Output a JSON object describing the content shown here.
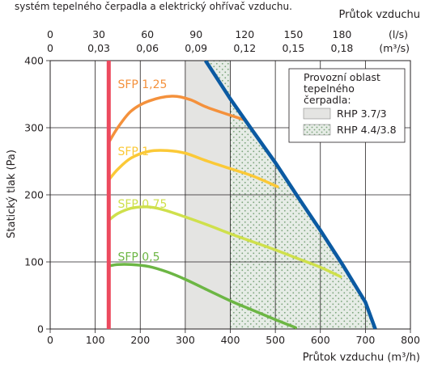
{
  "header_text": "systém tepelného čerpadla a elektrický ohřívač vzduchu.",
  "chart_data": {
    "type": "line",
    "title": "",
    "xlabel": "Průtok vzduchu (m³/h)",
    "ylabel": "Statický tlak (Pa)",
    "xlim": [
      0,
      800
    ],
    "ylim": [
      0,
      400
    ],
    "x_ticks": [
      0,
      100,
      200,
      300,
      400,
      500,
      600,
      700,
      800
    ],
    "y_ticks": [
      0,
      100,
      200,
      300,
      400
    ],
    "grid": true,
    "top_axis": {
      "title": "Průtok vzduchu",
      "row1_unit": "(l/s)",
      "row1_labels": [
        "0",
        "30",
        "60",
        "90",
        "120",
        "150",
        "180"
      ],
      "row2_unit": "(m³/s)",
      "row2_labels": [
        "0",
        "0,03",
        "0,06",
        "0,09",
        "0,12",
        "0,15",
        "0,18"
      ],
      "tick_m3h": [
        0,
        108,
        216,
        324,
        432,
        540,
        648
      ]
    },
    "limit_line": {
      "x": 130,
      "color": "#ec4a5e"
    },
    "fan_curve": {
      "color": "#0b5aa2",
      "points": [
        [
          345,
          400
        ],
        [
          400,
          343
        ],
        [
          450,
          295
        ],
        [
          500,
          248
        ],
        [
          550,
          197
        ],
        [
          600,
          147
        ],
        [
          650,
          95
        ],
        [
          700,
          40
        ],
        [
          722,
          0
        ]
      ]
    },
    "series": [
      {
        "name": "SFP 1,25",
        "color": "#f4913c",
        "label_pos": [
          150,
          365
        ],
        "points": [
          [
            130,
            278
          ],
          [
            150,
            300
          ],
          [
            180,
            325
          ],
          [
            220,
            340
          ],
          [
            270,
            347
          ],
          [
            310,
            342
          ],
          [
            350,
            330
          ],
          [
            430,
            312
          ]
        ]
      },
      {
        "name": "SFP 1",
        "color": "#fbc937",
        "label_pos": [
          150,
          265
        ],
        "points": [
          [
            130,
            222
          ],
          [
            150,
            238
          ],
          [
            180,
            255
          ],
          [
            220,
            265
          ],
          [
            260,
            266
          ],
          [
            300,
            262
          ],
          [
            350,
            250
          ],
          [
            400,
            239
          ],
          [
            450,
            228
          ],
          [
            505,
            212
          ]
        ]
      },
      {
        "name": "SFP 0,75",
        "color": "#cfe04c",
        "label_pos": [
          150,
          187
        ],
        "points": [
          [
            130,
            162
          ],
          [
            150,
            172
          ],
          [
            180,
            180
          ],
          [
            215,
            182
          ],
          [
            250,
            178
          ],
          [
            300,
            167
          ],
          [
            350,
            155
          ],
          [
            400,
            142
          ],
          [
            450,
            130
          ],
          [
            500,
            118
          ],
          [
            550,
            105
          ],
          [
            600,
            92
          ],
          [
            645,
            78
          ]
        ]
      },
      {
        "name": "SFP 0,5",
        "color": "#6cb644",
        "label_pos": [
          150,
          108
        ],
        "points": [
          [
            130,
            94
          ],
          [
            150,
            96
          ],
          [
            180,
            96
          ],
          [
            220,
            93
          ],
          [
            260,
            85
          ],
          [
            300,
            74
          ],
          [
            350,
            58
          ],
          [
            400,
            42
          ],
          [
            450,
            28
          ],
          [
            500,
            14
          ],
          [
            545,
            2
          ]
        ]
      }
    ],
    "operating_areas": {
      "title_lines": [
        "Provozní oblast",
        "tepelného",
        "čerpadla:"
      ],
      "items": [
        {
          "label": "RHP 3.7/3",
          "fill": "#e4e4e2",
          "start_x": 300
        },
        {
          "label": "RHP 4.4/3.8",
          "fill": "#d6e4d6",
          "start_x": 400
        }
      ]
    }
  }
}
